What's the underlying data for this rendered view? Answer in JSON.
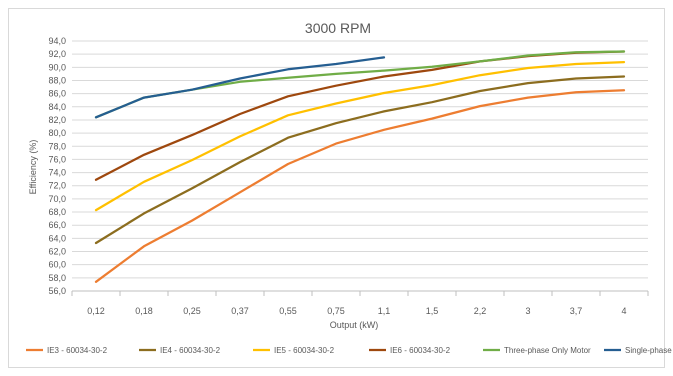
{
  "chart_data": {
    "type": "line",
    "title": "3000 RPM",
    "xlabel": "Output (kW)",
    "ylabel": "Efficiency (%)",
    "categories": [
      "0,12",
      "0,18",
      "0,25",
      "0,37",
      "0,55",
      "0,75",
      "1,1",
      "1,5",
      "2,2",
      "3",
      "3,7",
      "4"
    ],
    "ylim": [
      56,
      94
    ],
    "yticks": [
      "56,0",
      "58,0",
      "60,0",
      "62,0",
      "64,0",
      "66,0",
      "68,0",
      "70,0",
      "72,0",
      "74,0",
      "76,0",
      "78,0",
      "80,0",
      "82,0",
      "84,0",
      "86,0",
      "88,0",
      "90,0",
      "92,0",
      "94,0"
    ],
    "grid": true,
    "legend_position": "bottom",
    "series": [
      {
        "name": "IE3 - 60034-30-2",
        "color": "#ed7d31",
        "values": [
          57.4,
          62.8,
          66.7,
          71.0,
          75.3,
          78.4,
          80.5,
          82.2,
          84.1,
          85.4,
          86.2,
          86.5
        ]
      },
      {
        "name": "IE4 - 60034-30-2",
        "color": "#8c6d1f",
        "values": [
          63.3,
          67.8,
          71.6,
          75.6,
          79.3,
          81.5,
          83.3,
          84.7,
          86.4,
          87.6,
          88.3,
          88.6
        ]
      },
      {
        "name": "IE5 - 60034-30-2",
        "color": "#ffc000",
        "values": [
          68.3,
          72.6,
          75.9,
          79.5,
          82.7,
          84.5,
          86.1,
          87.3,
          88.8,
          89.9,
          90.5,
          90.8
        ]
      },
      {
        "name": "IE6 - 60034-30-2",
        "color": "#9e480e",
        "values": [
          72.9,
          76.7,
          79.7,
          82.9,
          85.6,
          87.2,
          88.6,
          89.6,
          90.9,
          91.7,
          92.2,
          92.4
        ]
      },
      {
        "name": "Three-phase Only Motor",
        "color": "#70ad47",
        "values": [
          82.4,
          85.4,
          86.6,
          87.8,
          88.4,
          89.0,
          89.5,
          90.1,
          90.9,
          91.8,
          92.3,
          92.4
        ]
      },
      {
        "name": "Single-phase Only motor",
        "color": "#255e91",
        "values": [
          82.4,
          85.4,
          86.6,
          88.3,
          89.7,
          90.5,
          91.5,
          null,
          null,
          null,
          null,
          null
        ]
      }
    ]
  }
}
